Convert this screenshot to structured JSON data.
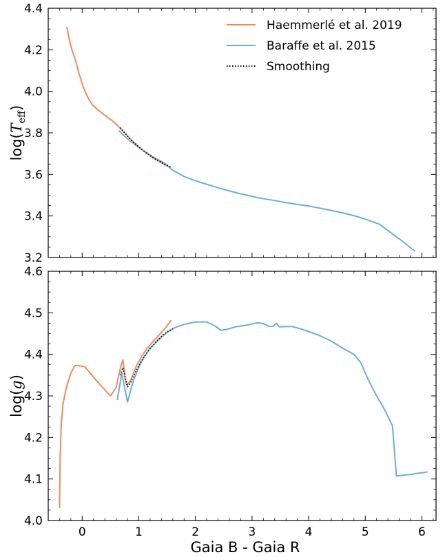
{
  "colors": {
    "haemmerle": "#EE8A5E",
    "baraffe": "#6AAED6",
    "smoothing": "#000000"
  },
  "chart_data": [
    {
      "type": "line",
      "ylabel": "log(T_eff)",
      "ylabel_main": "log(",
      "ylabel_italic": "T",
      "ylabel_sub": "eff",
      "ylabel_close": ")",
      "xlim": [
        -0.6,
        6.25
      ],
      "ylim": [
        3.2,
        4.4
      ],
      "xticks": [
        0,
        1,
        2,
        3,
        4,
        5,
        6
      ],
      "yticks": [
        3.2,
        3.4,
        3.6,
        3.8,
        4.0,
        4.2,
        4.4
      ],
      "ytick_labels": [
        "3.2",
        "3.4",
        "3.6",
        "3.8",
        "4.0",
        "4.2",
        "4.4"
      ],
      "legend": {
        "position": "top-right",
        "entries": [
          {
            "label": "Haemmerlé et al. 2019",
            "series": "haemmerle"
          },
          {
            "label": "Baraffe et al. 2015",
            "series": "baraffe"
          },
          {
            "label": "Smoothing",
            "series": "smoothing"
          }
        ]
      },
      "series": [
        {
          "name": "Haemmerlé et al. 2019",
          "key": "haemmerle",
          "style": "solid",
          "x": [
            -0.27,
            -0.22,
            -0.18,
            -0.12,
            -0.05,
            0.02,
            0.1,
            0.18,
            0.28,
            0.4,
            0.55,
            0.7,
            0.82,
            0.95,
            1.1,
            1.25,
            1.4,
            1.57
          ],
          "y": [
            4.31,
            4.24,
            4.2,
            4.15,
            4.08,
            4.02,
            3.97,
            3.935,
            3.91,
            3.885,
            3.855,
            3.815,
            3.78,
            3.745,
            3.71,
            3.68,
            3.655,
            3.63
          ]
        },
        {
          "name": "Baraffe et al. 2015",
          "key": "baraffe",
          "style": "solid",
          "x": [
            0.65,
            0.85,
            1.05,
            1.25,
            1.45,
            1.6,
            1.8,
            2.0,
            2.25,
            2.5,
            2.75,
            3.1,
            3.4,
            3.7,
            4.0,
            4.3,
            4.6,
            4.85,
            5.05,
            5.25,
            5.45,
            5.65,
            5.88
          ],
          "y": [
            3.81,
            3.76,
            3.72,
            3.685,
            3.655,
            3.62,
            3.59,
            3.57,
            3.548,
            3.528,
            3.51,
            3.488,
            3.474,
            3.46,
            3.448,
            3.432,
            3.415,
            3.398,
            3.38,
            3.36,
            3.32,
            3.28,
            3.23
          ]
        },
        {
          "name": "Smoothing",
          "key": "smoothing",
          "style": "dotted",
          "x": [
            0.67,
            0.85,
            1.05,
            1.25,
            1.45,
            1.57
          ],
          "y": [
            3.825,
            3.77,
            3.72,
            3.68,
            3.65,
            3.635
          ]
        }
      ]
    },
    {
      "type": "line",
      "ylabel": "log(g)",
      "ylabel_main": "log(",
      "ylabel_italic": "g",
      "ylabel_close": ")",
      "xlabel": "Gaia B - Gaia R",
      "xlim": [
        -0.6,
        6.25
      ],
      "ylim": [
        4.0,
        4.6
      ],
      "xticks": [
        0,
        1,
        2,
        3,
        4,
        5,
        6
      ],
      "xtick_labels": [
        "0",
        "1",
        "2",
        "3",
        "4",
        "5",
        "6"
      ],
      "yticks": [
        4.0,
        4.1,
        4.2,
        4.3,
        4.4,
        4.5,
        4.6
      ],
      "ytick_labels": [
        "4.0",
        "4.1",
        "4.2",
        "4.3",
        "4.4",
        "4.5",
        "4.6"
      ],
      "series": [
        {
          "name": "Haemmerlé et al. 2019",
          "key": "haemmerle",
          "style": "solid",
          "x": [
            -0.4,
            -0.39,
            -0.37,
            -0.34,
            -0.28,
            -0.2,
            -0.13,
            -0.07,
            0.05,
            0.2,
            0.35,
            0.5,
            0.6,
            0.68,
            0.72,
            0.76,
            0.79,
            0.85,
            0.95,
            1.05,
            1.15,
            1.3,
            1.45,
            1.57
          ],
          "y": [
            4.03,
            4.15,
            4.23,
            4.28,
            4.32,
            4.355,
            4.373,
            4.373,
            4.37,
            4.345,
            4.322,
            4.3,
            4.32,
            4.37,
            4.387,
            4.34,
            4.326,
            4.335,
            4.37,
            4.395,
            4.415,
            4.438,
            4.46,
            4.482
          ]
        },
        {
          "name": "Baraffe et al. 2015",
          "key": "baraffe",
          "style": "solid",
          "x": [
            0.62,
            0.7,
            0.8,
            0.9,
            1.0,
            1.1,
            1.2,
            1.35,
            1.5,
            1.65,
            1.8,
            2.0,
            2.2,
            2.35,
            2.45,
            2.55,
            2.7,
            2.9,
            3.1,
            3.2,
            3.3,
            3.38,
            3.43,
            3.48,
            3.6,
            3.7,
            3.85,
            4.0,
            4.2,
            4.4,
            4.6,
            4.8,
            4.92,
            5.05,
            5.2,
            5.35,
            5.48,
            5.55,
            5.8,
            6.1
          ],
          "y": [
            4.29,
            4.355,
            4.285,
            4.335,
            4.37,
            4.395,
            4.415,
            4.435,
            4.453,
            4.465,
            4.472,
            4.478,
            4.478,
            4.468,
            4.458,
            4.46,
            4.466,
            4.47,
            4.476,
            4.474,
            4.467,
            4.468,
            4.475,
            4.466,
            4.467,
            4.467,
            4.462,
            4.455,
            4.445,
            4.432,
            4.415,
            4.4,
            4.38,
            4.34,
            4.3,
            4.265,
            4.228,
            4.107,
            4.111,
            4.117
          ]
        },
        {
          "name": "Smoothing",
          "key": "smoothing",
          "style": "dotted",
          "x": [
            0.67,
            0.72,
            0.76,
            0.8,
            0.85,
            0.95,
            1.05,
            1.15,
            1.3,
            1.45,
            1.6
          ],
          "y": [
            4.35,
            4.368,
            4.345,
            4.322,
            4.33,
            4.36,
            4.385,
            4.405,
            4.43,
            4.45,
            4.462
          ]
        }
      ]
    }
  ]
}
